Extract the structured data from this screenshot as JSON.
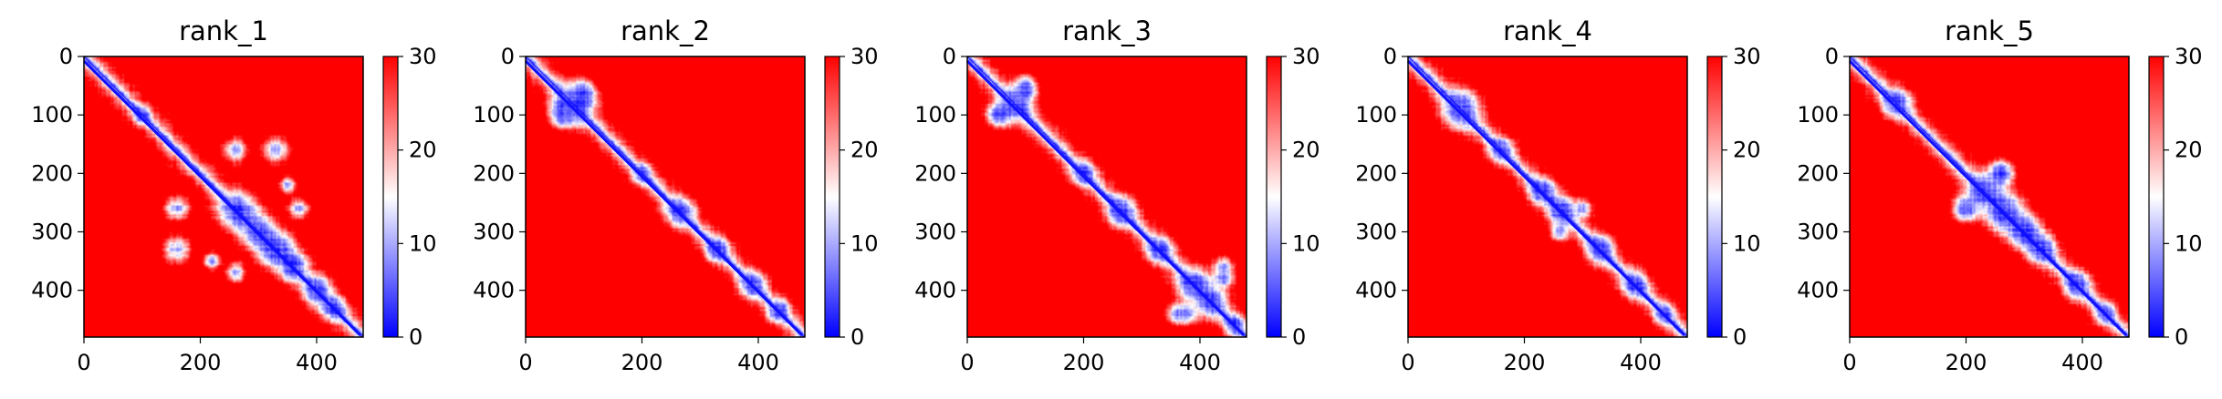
{
  "colors": {
    "low": "#0000ff",
    "mid": "#ffffff",
    "high": "#ff0000"
  },
  "chart_data": [
    {
      "type": "heatmap",
      "title": "rank_1",
      "xlabel": "",
      "ylabel": "",
      "n": 480,
      "xlim": [
        0,
        480
      ],
      "ylim": [
        480,
        0
      ],
      "xticks": [
        0,
        200,
        400
      ],
      "yticks": [
        0,
        100,
        200,
        300,
        400
      ],
      "color_range": [
        0,
        30
      ],
      "colorbar_ticks": [
        0,
        10,
        20,
        30
      ],
      "colormap": "bwr",
      "grid": false,
      "blobs": [
        [
          265,
          265,
          30
        ],
        [
          330,
          330,
          28
        ],
        [
          370,
          260,
          18
        ],
        [
          355,
          365,
          20
        ],
        [
          160,
          330,
          25
        ],
        [
          300,
          300,
          25
        ],
        [
          260,
          160,
          22
        ],
        [
          100,
          100,
          12
        ],
        [
          400,
          400,
          22
        ],
        [
          430,
          430,
          18
        ],
        [
          350,
          220,
          15
        ]
      ]
    },
    {
      "type": "heatmap",
      "title": "rank_2",
      "xlabel": "",
      "ylabel": "",
      "n": 480,
      "xlim": [
        0,
        480
      ],
      "ylim": [
        480,
        0
      ],
      "xticks": [
        0,
        200,
        400
      ],
      "yticks": [
        0,
        100,
        200,
        300,
        400
      ],
      "color_range": [
        0,
        30
      ],
      "colorbar_ticks": [
        0,
        10,
        20,
        30
      ],
      "colormap": "bwr",
      "grid": false,
      "blobs": [
        [
          80,
          80,
          30
        ],
        [
          70,
          100,
          20
        ],
        [
          100,
          60,
          18
        ],
        [
          265,
          265,
          22
        ],
        [
          330,
          330,
          18
        ],
        [
          390,
          390,
          20
        ],
        [
          440,
          430,
          15
        ],
        [
          200,
          200,
          14
        ]
      ]
    },
    {
      "type": "heatmap",
      "title": "rank_3",
      "xlabel": "",
      "ylabel": "",
      "n": 480,
      "xlim": [
        0,
        480
      ],
      "ylim": [
        480,
        0
      ],
      "xticks": [
        0,
        200,
        400
      ],
      "yticks": [
        0,
        100,
        200,
        300,
        400
      ],
      "color_range": [
        0,
        30
      ],
      "colorbar_ticks": [
        0,
        10,
        20,
        30
      ],
      "colormap": "bwr",
      "grid": false,
      "blobs": [
        [
          80,
          80,
          25
        ],
        [
          60,
          100,
          18
        ],
        [
          100,
          50,
          18
        ],
        [
          200,
          200,
          18
        ],
        [
          265,
          265,
          22
        ],
        [
          330,
          330,
          20
        ],
        [
          390,
          390,
          25
        ],
        [
          420,
          420,
          22
        ],
        [
          440,
          360,
          18
        ],
        [
          380,
          440,
          18
        ],
        [
          460,
          460,
          15
        ]
      ]
    },
    {
      "type": "heatmap",
      "title": "rank_4",
      "xlabel": "",
      "ylabel": "",
      "n": 480,
      "xlim": [
        0,
        480
      ],
      "ylim": [
        480,
        0
      ],
      "xticks": [
        0,
        200,
        400
      ],
      "yticks": [
        0,
        100,
        200,
        300,
        400
      ],
      "color_range": [
        0,
        30
      ],
      "colorbar_ticks": [
        0,
        10,
        20,
        30
      ],
      "colormap": "bwr",
      "grid": false,
      "blobs": [
        [
          90,
          90,
          30
        ],
        [
          160,
          160,
          18
        ],
        [
          230,
          230,
          20
        ],
        [
          265,
          265,
          22
        ],
        [
          330,
          330,
          20
        ],
        [
          390,
          390,
          20
        ],
        [
          440,
          440,
          15
        ],
        [
          300,
          260,
          15
        ]
      ]
    },
    {
      "type": "heatmap",
      "title": "rank_5",
      "xlabel": "",
      "ylabel": "",
      "n": 480,
      "xlim": [
        0,
        480
      ],
      "ylim": [
        480,
        0
      ],
      "xticks": [
        0,
        200,
        400
      ],
      "yticks": [
        0,
        100,
        200,
        300,
        400
      ],
      "color_range": [
        0,
        30
      ],
      "colorbar_ticks": [
        0,
        10,
        20,
        30
      ],
      "colormap": "bwr",
      "grid": false,
      "blobs": [
        [
          80,
          80,
          22
        ],
        [
          230,
          230,
          25
        ],
        [
          265,
          265,
          30
        ],
        [
          300,
          300,
          25
        ],
        [
          330,
          330,
          22
        ],
        [
          260,
          200,
          20
        ],
        [
          200,
          260,
          20
        ],
        [
          390,
          390,
          20
        ],
        [
          440,
          440,
          15
        ]
      ]
    }
  ]
}
